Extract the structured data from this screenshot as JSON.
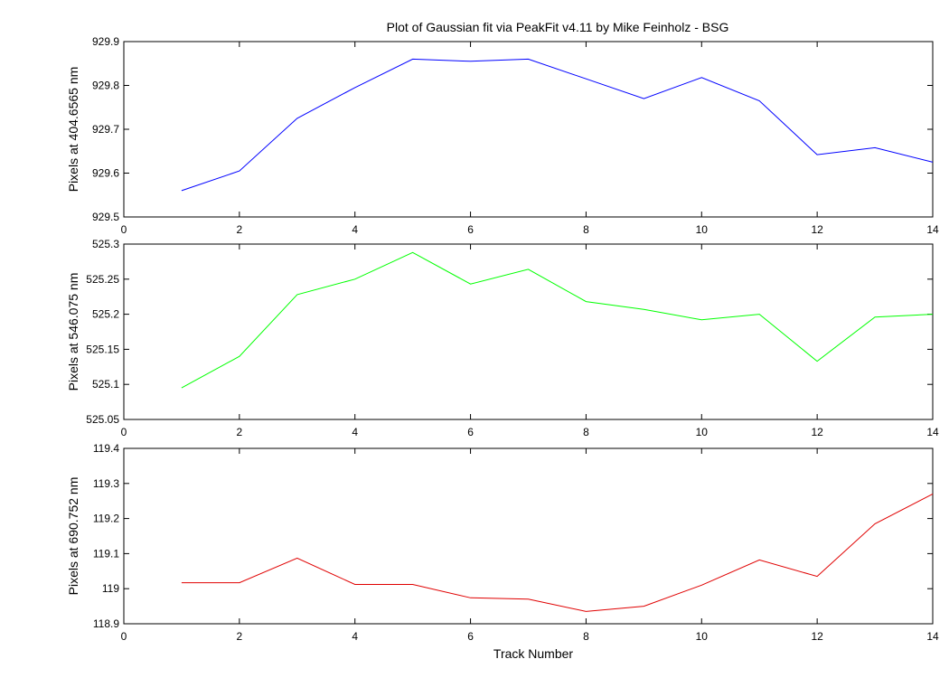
{
  "figure": {
    "title": "Plot of Gaussian fit via PeakFit v4.11 by Mike Feinholz - BSG",
    "xlabel": "Track Number"
  },
  "chart_data": [
    {
      "type": "line",
      "ylabel": "Pixels at 404.6565 nm",
      "color": "#0000ff",
      "xlim": [
        0,
        14
      ],
      "ylim": [
        929.5,
        929.9
      ],
      "xticks": [
        0,
        2,
        4,
        6,
        8,
        10,
        12,
        14
      ],
      "yticks": [
        "929.5",
        "929.6",
        "929.7",
        "929.8",
        "929.9"
      ],
      "x": [
        1,
        2,
        3,
        4,
        5,
        6,
        7,
        8,
        9,
        10,
        11,
        12,
        13,
        14
      ],
      "y": [
        929.56,
        929.605,
        929.725,
        929.795,
        929.86,
        929.855,
        929.86,
        929.815,
        929.77,
        929.818,
        929.765,
        929.642,
        929.658,
        929.625
      ],
      "grid": false
    },
    {
      "type": "line",
      "ylabel": "Pixels at 546.075 nm",
      "color": "#00ff00",
      "xlim": [
        0,
        14
      ],
      "ylim": [
        525.05,
        525.3
      ],
      "xticks": [
        0,
        2,
        4,
        6,
        8,
        10,
        12,
        14
      ],
      "yticks": [
        "525.05",
        "525.1",
        "525.15",
        "525.2",
        "525.25",
        "525.3"
      ],
      "x": [
        1,
        2,
        3,
        4,
        5,
        6,
        7,
        8,
        9,
        10,
        11,
        12,
        13,
        14
      ],
      "y": [
        525.095,
        525.14,
        525.228,
        525.25,
        525.288,
        525.243,
        525.264,
        525.218,
        525.207,
        525.192,
        525.2,
        525.133,
        525.196,
        525.2
      ],
      "grid": false
    },
    {
      "type": "line",
      "ylabel": "Pixels at 690.752 nm",
      "color": "#e00000",
      "xlim": [
        0,
        14
      ],
      "ylim": [
        118.9,
        119.4
      ],
      "xticks": [
        0,
        2,
        4,
        6,
        8,
        10,
        12,
        14
      ],
      "yticks": [
        "118.9",
        "119",
        "119.1",
        "119.2",
        "119.3",
        "119.4"
      ],
      "x": [
        1,
        2,
        3,
        4,
        5,
        6,
        7,
        8,
        9,
        10,
        11,
        12,
        13,
        14
      ],
      "y": [
        119.017,
        119.017,
        119.087,
        119.012,
        119.012,
        118.974,
        118.97,
        118.935,
        118.95,
        119.01,
        119.082,
        119.035,
        119.185,
        119.27
      ],
      "grid": false
    }
  ]
}
